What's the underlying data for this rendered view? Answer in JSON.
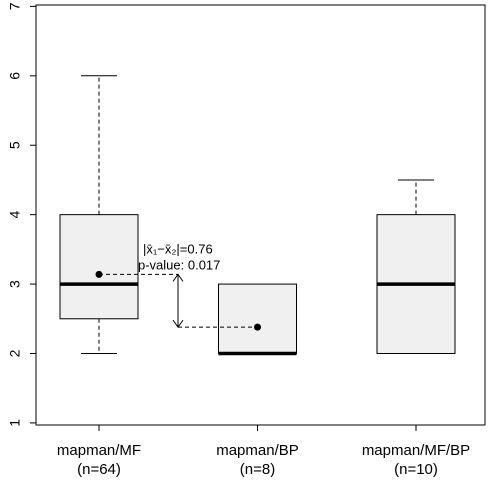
{
  "chart_data": {
    "type": "box",
    "categories": [
      "mapman/MF",
      "mapman/BP",
      "mapman/MF/BP"
    ],
    "sample_sizes": [
      "(n=64)",
      "(n=8)",
      "(n=10)"
    ],
    "boxes": [
      {
        "min": 2,
        "q1": 2.5,
        "median": 3,
        "q3": 4,
        "max": 6,
        "mean": 3.14
      },
      {
        "min": 2,
        "q1": 2,
        "median": 2,
        "q3": 3,
        "max": 3,
        "mean": 2.38
      },
      {
        "min": 2,
        "q1": 2,
        "median": 3,
        "q3": 4,
        "max": 4.5
      }
    ],
    "box_color": "#f0f0f0",
    "ylim": [
      0.97,
      7.02
    ],
    "yticks": [
      1,
      2,
      3,
      4,
      5,
      6,
      7
    ],
    "annotations": [
      "|x̄₁−x̄₂|=0.76",
      "p-value: 0.017"
    ]
  }
}
